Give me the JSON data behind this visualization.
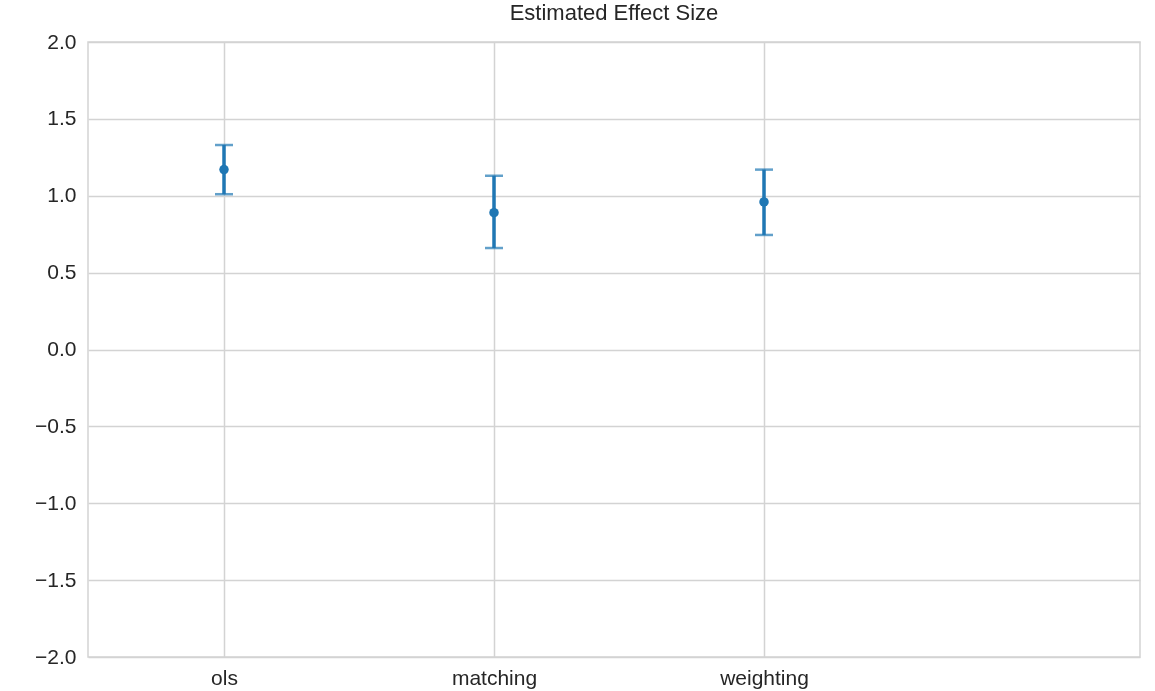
{
  "chart_data": {
    "type": "scatter",
    "title": "Estimated Effect Size",
    "categories": [
      "ols",
      "matching",
      "weighting"
    ],
    "series": [
      {
        "color": "#1f77b4",
        "values": [
          1.17,
          0.89,
          0.96
        ],
        "errors": [
          [
            1.01,
            1.33
          ],
          [
            0.66,
            1.13
          ],
          [
            0.745,
            1.17
          ]
        ]
      }
    ],
    "ylim": [
      -2,
      2
    ],
    "yticks": [
      {
        "value": -2,
        "label": "−2.0"
      },
      {
        "value": -1.5,
        "label": "−1.5"
      },
      {
        "value": -1,
        "label": "−1.0"
      },
      {
        "value": -0.5,
        "label": "−0.5"
      },
      {
        "value": 0,
        "label": "0.0"
      },
      0.5,
      {
        "value": 1,
        "label": "1.0"
      },
      1.5,
      {
        "value": 2,
        "label": "2.0"
      }
    ],
    "grid": true,
    "marker": "circle"
  }
}
